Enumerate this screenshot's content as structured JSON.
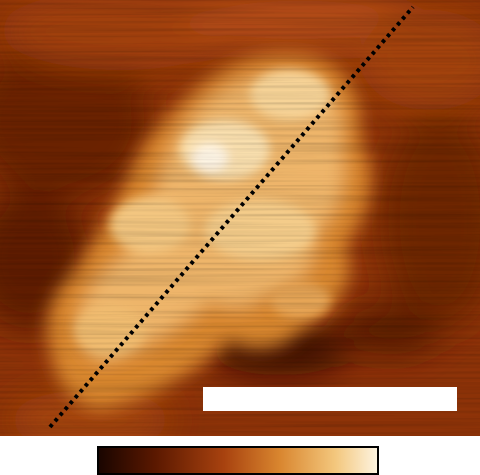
{
  "image": {
    "subject": "afm-height-map",
    "colormap": [
      "#1a0500",
      "#5a1800",
      "#a8420f",
      "#d9862f",
      "#f3c77d",
      "#fdf3df"
    ],
    "base_color": "#8a2f08",
    "highlight_color": "#fff6e6"
  },
  "line_profile": {
    "color": "#000000",
    "style": "dotted"
  },
  "scale_bar": {
    "color": "#ffffff"
  },
  "colorbar": {
    "stops": [
      "#1a0500",
      "#5a1800",
      "#a8420f",
      "#d9862f",
      "#f3c77d",
      "#fdf3df"
    ],
    "border_color": "#000000"
  }
}
